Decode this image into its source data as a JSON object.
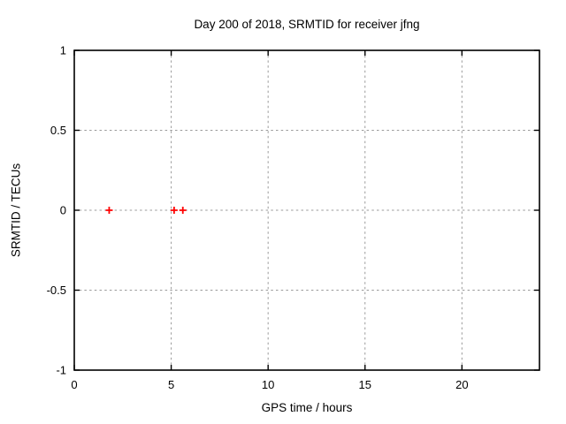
{
  "page": {
    "background": "#ffffff",
    "text_color": "#000000"
  },
  "chart_data": {
    "type": "scatter",
    "title": "Day 200 of 2018, SRMTID for receiver jfng",
    "xlabel": "GPS time / hours",
    "ylabel": "SRMTID / TECUs",
    "xlim": [
      0,
      24
    ],
    "ylim": [
      -1,
      1
    ],
    "xticks": {
      "values": [
        0,
        5,
        10,
        15,
        20
      ],
      "labels": [
        "0",
        "5",
        "10",
        "15",
        "20"
      ]
    },
    "yticks": {
      "values": [
        -1,
        -0.5,
        0,
        0.5,
        1
      ],
      "labels": [
        "-1",
        "-0.5",
        "0",
        "0.5",
        "1"
      ]
    },
    "grid": {
      "show": true,
      "color": "#9a9a9a",
      "dash": "2.5,3.2"
    },
    "frame_color": "#000000",
    "legend": {
      "show": false
    },
    "series": [
      {
        "name": "SRMTID",
        "marker": "plus",
        "color": "#ff0000",
        "points": [
          {
            "x": 1.8,
            "y": 0.0
          },
          {
            "x": 5.15,
            "y": 0.0
          },
          {
            "x": 5.6,
            "y": 0.0
          }
        ]
      }
    ]
  }
}
